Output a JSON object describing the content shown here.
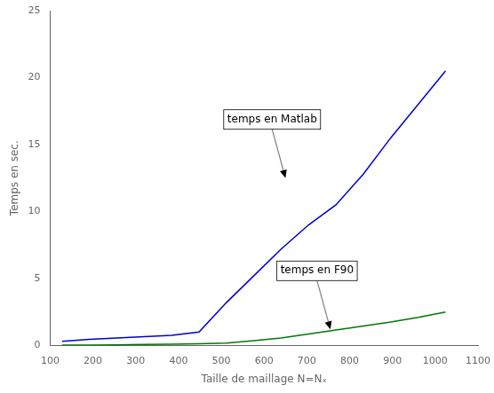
{
  "chart_data": {
    "type": "line",
    "xlabel": "Taille de maillage N=Nₓ",
    "ylabel": "Temps en sec.",
    "x": [
      128,
      192,
      256,
      320,
      384,
      448,
      512,
      576,
      640,
      704,
      768,
      832,
      896,
      960,
      1024
    ],
    "series": [
      {
        "color": "#0000cc",
        "values": [
          0.3,
          0.45,
          0.55,
          0.65,
          0.75,
          1.0,
          3.2,
          5.2,
          7.2,
          9.0,
          10.5,
          12.8,
          15.5,
          18.0,
          20.5
        ]
      },
      {
        "color": "#007700",
        "values": [
          0.02,
          0.03,
          0.05,
          0.07,
          0.1,
          0.13,
          0.18,
          0.35,
          0.55,
          0.85,
          1.15,
          1.45,
          1.75,
          2.1,
          2.5
        ]
      }
    ],
    "xlim": [
      100,
      1100
    ],
    "ylim": [
      0,
      25
    ],
    "xticks": [
      100,
      200,
      300,
      400,
      500,
      600,
      700,
      800,
      900,
      1000,
      1100
    ],
    "yticks": [
      0,
      5,
      10,
      15,
      20,
      25
    ],
    "annotations": [
      {
        "text": "temps en Matlab",
        "x": 650,
        "y": 12.5
      },
      {
        "text": "temps en F90",
        "x": 755,
        "y": 1.2
      }
    ],
    "grid": false
  }
}
